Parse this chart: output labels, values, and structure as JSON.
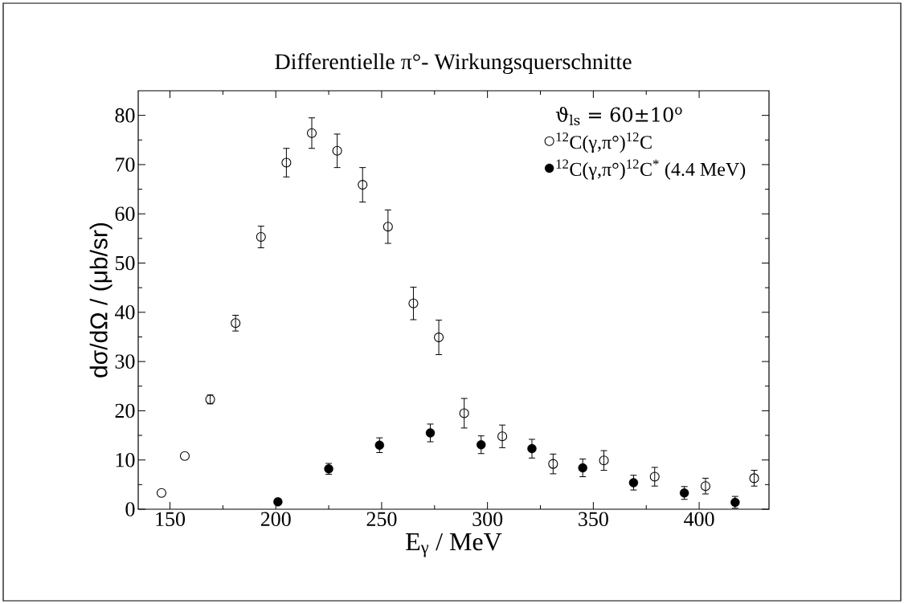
{
  "chart_data": {
    "type": "scatter",
    "title": "Differentielle π°- Wirkungsquerschnitte",
    "xlabel": "E$_{γ}$ / MeV",
    "ylabel": "dσ/dΩ / (μb/sr)",
    "legend_title": "ϑ$_{ls}$ = 60±10$^{o}$",
    "xlim": [
      135,
      433
    ],
    "ylim": [
      0,
      85
    ],
    "xticks": [
      150,
      200,
      250,
      300,
      350,
      400
    ],
    "yticks": [
      0,
      10,
      20,
      30,
      40,
      50,
      60,
      70,
      80
    ],
    "marker": "circle",
    "legend": "top right",
    "grid": false,
    "series": [
      {
        "name": "$^{12}$C(γ,π°)$^{12}$C",
        "x": [
          146,
          157,
          169,
          181,
          193,
          205,
          217,
          229,
          241,
          253,
          265,
          277,
          289,
          307,
          331,
          355,
          379,
          403,
          426
        ],
        "values": [
          3.3,
          10.8,
          22.3,
          37.8,
          55.3,
          70.4,
          76.4,
          72.8,
          65.9,
          57.4,
          41.8,
          34.9,
          19.5,
          14.8,
          9.2,
          9.9,
          6.6,
          4.7,
          6.3
        ],
        "errors": [
          null,
          null,
          0.9,
          1.6,
          2.2,
          2.9,
          3.1,
          3.4,
          3.5,
          3.4,
          3.3,
          3.5,
          3.0,
          2.3,
          2.0,
          2.0,
          1.9,
          1.6,
          1.6
        ]
      },
      {
        "name": "$^{12}$C(γ,π°)$^{12}$C$^{*}$ (4.4 MeV)",
        "color": "#000000",
        "x": [
          201,
          225,
          249,
          273,
          297,
          321,
          345,
          369,
          393,
          417
        ],
        "values": [
          1.5,
          8.2,
          13.0,
          15.5,
          13.1,
          12.3,
          8.4,
          5.4,
          3.3,
          1.4
        ],
        "errors": [
          0.6,
          1.1,
          1.5,
          1.8,
          1.8,
          1.9,
          1.8,
          1.5,
          1.3,
          1.2
        ]
      }
    ]
  }
}
